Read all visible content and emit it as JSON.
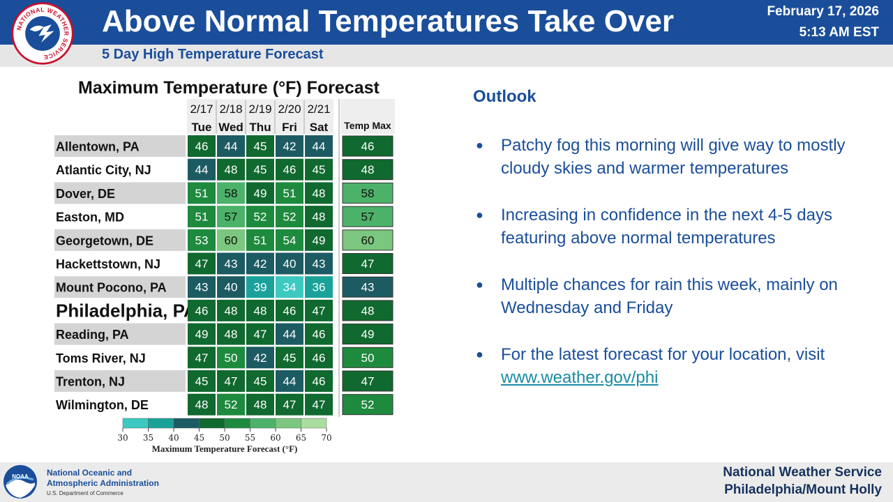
{
  "header": {
    "title": "Above Normal Temperatures Take Over",
    "date": "February 17, 2026",
    "time": "5:13 AM EST",
    "subtitle": "5 Day High Temperature Forecast",
    "logo_text": "NATIONAL WEATHER SERVICE"
  },
  "colors": {
    "header_blue": "#1a4e9a",
    "link_teal": "#1a8aa3",
    "bands": [
      "#3cc9c0",
      "#1aa29a",
      "#1d5b63",
      "#10692f",
      "#1e8a3e",
      "#4cb26a",
      "#7cc77f",
      "#abdca0",
      "#dff5c9"
    ]
  },
  "chart_data": {
    "type": "table",
    "title": "Maximum Temperature (°F) Forecast",
    "dates": [
      "2/17",
      "2/18",
      "2/19",
      "2/20",
      "2/21"
    ],
    "days": [
      "Tue",
      "Wed",
      "Thu",
      "Fri",
      "Sat"
    ],
    "max_header": "Temp Max",
    "rows": [
      {
        "location": "Allentown, PA",
        "values": [
          46,
          44,
          45,
          42,
          44
        ],
        "max": 46
      },
      {
        "location": "Atlantic City, NJ",
        "values": [
          44,
          48,
          45,
          46,
          45
        ],
        "max": 48
      },
      {
        "location": "Dover, DE",
        "values": [
          51,
          58,
          49,
          51,
          48
        ],
        "max": 58
      },
      {
        "location": "Easton, MD",
        "values": [
          51,
          57,
          52,
          52,
          48
        ],
        "max": 57
      },
      {
        "location": "Georgetown, DE",
        "values": [
          53,
          60,
          51,
          54,
          49
        ],
        "max": 60
      },
      {
        "location": "Hackettstown, NJ",
        "values": [
          47,
          43,
          42,
          40,
          43
        ],
        "max": 47
      },
      {
        "location": "Mount Pocono, PA",
        "values": [
          43,
          40,
          39,
          34,
          36
        ],
        "max": 43
      },
      {
        "location": "Philadelphia, PA",
        "values": [
          46,
          48,
          48,
          46,
          47
        ],
        "max": 48
      },
      {
        "location": "Reading, PA",
        "values": [
          49,
          48,
          47,
          44,
          46
        ],
        "max": 49
      },
      {
        "location": "Toms River, NJ",
        "values": [
          47,
          50,
          42,
          45,
          46
        ],
        "max": 50
      },
      {
        "location": "Trenton, NJ",
        "values": [
          45,
          47,
          45,
          44,
          46
        ],
        "max": 47
      },
      {
        "location": "Wilmington, DE",
        "values": [
          48,
          52,
          48,
          47,
          47
        ],
        "max": 52
      }
    ],
    "highlight_location": "Philadelphia, PA",
    "legend": {
      "ticks": [
        30,
        35,
        40,
        45,
        50,
        55,
        60,
        65,
        70
      ],
      "label": "Maximum Temperature Forecast (°F)"
    }
  },
  "outlook": {
    "heading": "Outlook",
    "bullets": [
      "Patchy fog this morning will give way to mostly cloudy skies and warmer temperatures",
      "Increasing in confidence in the next 4-5 days featuring above normal temperatures",
      "Multiple chances for rain this week, mainly on Wednesday and Friday"
    ],
    "link_bullet_prefix": "For the latest forecast for your location, visit ",
    "link_text": "www.weather.gov/phi"
  },
  "footer": {
    "noaa_line1": "National Oceanic and",
    "noaa_line2": "Atmospheric Administration",
    "noaa_dept": "U.S. Department of Commerce",
    "noaa_logo_text": "NOAA",
    "office_line1": "National Weather Service",
    "office_line2": "Philadelphia/Mount Holly"
  }
}
